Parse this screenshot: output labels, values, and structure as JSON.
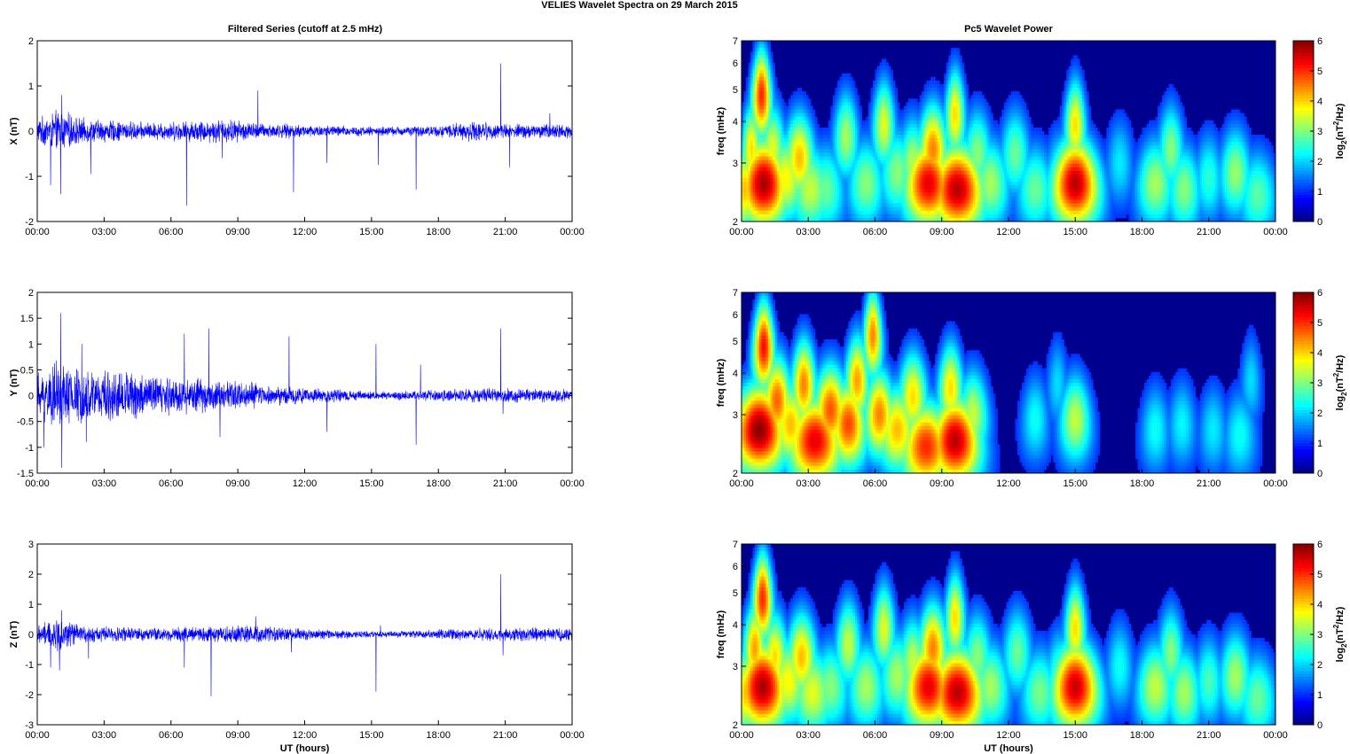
{
  "figure": {
    "suptitle": "VELIES Wavelet Spectra on 29 March      2015",
    "left_title": "Filtered Series (cutoff at 2.5 mHz)",
    "right_title": "Pc5 Wavelet Power",
    "xlabel": "UT (hours)",
    "spec_ylabel": "freq (mHz)",
    "cbar_label_main": "log",
    "cbar_label_sub": "2",
    "cbar_label_paren_open": "(nT",
    "cbar_label_sup": "2",
    "cbar_label_tail": "/Hz)"
  },
  "colors": {
    "trace": "#0000ff",
    "spectrum_background": "#00008f",
    "colormap": "jet"
  },
  "chart_data": [
    {
      "type": "line",
      "title": "Filtered Series (cutoff at 2.5 mHz)",
      "ylabel": "X (nT)",
      "xlabel": "",
      "xlim_hours": [
        0,
        24
      ],
      "xticks": [
        "00:00",
        "03:00",
        "06:00",
        "09:00",
        "12:00",
        "15:00",
        "18:00",
        "21:00",
        "00:00"
      ],
      "ylim": [
        -2,
        2
      ],
      "yticks": [
        "-2",
        "-1",
        "0",
        "1",
        "2"
      ],
      "yticks_vals": [
        -2,
        -1,
        0,
        1,
        2
      ],
      "noise_envelope": [
        {
          "t": 0.0,
          "a": 0.22
        },
        {
          "t": 1.0,
          "a": 0.38
        },
        {
          "t": 2.0,
          "a": 0.22
        },
        {
          "t": 3.0,
          "a": 0.2
        },
        {
          "t": 5.0,
          "a": 0.15
        },
        {
          "t": 8.5,
          "a": 0.22
        },
        {
          "t": 10.0,
          "a": 0.14
        },
        {
          "t": 15.3,
          "a": 0.08
        },
        {
          "t": 18.0,
          "a": 0.1
        },
        {
          "t": 19.5,
          "a": 0.18
        },
        {
          "t": 21.0,
          "a": 0.13
        },
        {
          "t": 24.0,
          "a": 0.13
        }
      ],
      "spikes": [
        {
          "t": 0.6,
          "v": -1.2
        },
        {
          "t": 1.05,
          "v": -1.4
        },
        {
          "t": 1.1,
          "v": 0.8
        },
        {
          "t": 2.4,
          "v": -0.95
        },
        {
          "t": 6.7,
          "v": -1.65
        },
        {
          "t": 8.3,
          "v": -0.6
        },
        {
          "t": 9.9,
          "v": 0.9
        },
        {
          "t": 11.5,
          "v": -1.35
        },
        {
          "t": 13.0,
          "v": -0.7
        },
        {
          "t": 15.3,
          "v": -0.75
        },
        {
          "t": 17.0,
          "v": -1.3
        },
        {
          "t": 20.8,
          "v": 1.5
        },
        {
          "t": 21.2,
          "v": -0.8
        },
        {
          "t": 23.0,
          "v": 0.4
        }
      ]
    },
    {
      "type": "line",
      "title": "",
      "ylabel": "Y (nT)",
      "xlabel": "",
      "xlim_hours": [
        0,
        24
      ],
      "xticks": [
        "00:00",
        "03:00",
        "06:00",
        "09:00",
        "12:00",
        "15:00",
        "18:00",
        "21:00",
        "00:00"
      ],
      "ylim": [
        -1.5,
        2
      ],
      "yticks": [
        "-1.5",
        "-1",
        "-0.5",
        "0",
        "0.5",
        "1",
        "1.5",
        "2"
      ],
      "yticks_vals": [
        -1.5,
        -1,
        -0.5,
        0,
        0.5,
        1,
        1.5,
        2
      ],
      "noise_envelope": [
        {
          "t": 0.0,
          "a": 0.35
        },
        {
          "t": 1.0,
          "a": 0.55
        },
        {
          "t": 2.0,
          "a": 0.4
        },
        {
          "t": 4.0,
          "a": 0.38
        },
        {
          "t": 6.0,
          "a": 0.3
        },
        {
          "t": 9.0,
          "a": 0.22
        },
        {
          "t": 12.0,
          "a": 0.12
        },
        {
          "t": 15.3,
          "a": 0.06
        },
        {
          "t": 18.0,
          "a": 0.09
        },
        {
          "t": 20.8,
          "a": 0.12
        },
        {
          "t": 24.0,
          "a": 0.09
        }
      ],
      "spikes": [
        {
          "t": 0.3,
          "v": -1.0
        },
        {
          "t": 1.05,
          "v": 1.6
        },
        {
          "t": 1.1,
          "v": -1.4
        },
        {
          "t": 2.0,
          "v": 1.0
        },
        {
          "t": 2.2,
          "v": -0.9
        },
        {
          "t": 6.6,
          "v": 1.2
        },
        {
          "t": 7.7,
          "v": 1.3
        },
        {
          "t": 8.2,
          "v": -0.8
        },
        {
          "t": 11.3,
          "v": 1.15
        },
        {
          "t": 13.0,
          "v": -0.7
        },
        {
          "t": 15.2,
          "v": 1.0
        },
        {
          "t": 17.0,
          "v": -0.95
        },
        {
          "t": 17.2,
          "v": 0.6
        },
        {
          "t": 20.8,
          "v": 1.3
        },
        {
          "t": 20.9,
          "v": -0.35
        }
      ]
    },
    {
      "type": "line",
      "title": "",
      "ylabel": "Z (nT)",
      "xlabel": "UT (hours)",
      "xlim_hours": [
        0,
        24
      ],
      "xticks": [
        "00:00",
        "03:00",
        "06:00",
        "09:00",
        "12:00",
        "15:00",
        "18:00",
        "21:00",
        "00:00"
      ],
      "ylim": [
        -3,
        3
      ],
      "yticks": [
        "-3",
        "-2",
        "-1",
        "0",
        "1",
        "2",
        "3"
      ],
      "yticks_vals": [
        -3,
        -2,
        -1,
        0,
        1,
        2,
        3
      ],
      "noise_envelope": [
        {
          "t": 0.0,
          "a": 0.25
        },
        {
          "t": 1.0,
          "a": 0.45
        },
        {
          "t": 2.0,
          "a": 0.22
        },
        {
          "t": 5.0,
          "a": 0.18
        },
        {
          "t": 8.8,
          "a": 0.25
        },
        {
          "t": 12.0,
          "a": 0.15
        },
        {
          "t": 15.3,
          "a": 0.08
        },
        {
          "t": 18.0,
          "a": 0.13
        },
        {
          "t": 20.8,
          "a": 0.18
        },
        {
          "t": 24.0,
          "a": 0.18
        }
      ],
      "spikes": [
        {
          "t": 0.6,
          "v": -1.1
        },
        {
          "t": 1.0,
          "v": -1.2
        },
        {
          "t": 1.1,
          "v": 0.8
        },
        {
          "t": 2.3,
          "v": -0.8
        },
        {
          "t": 6.6,
          "v": -1.1
        },
        {
          "t": 7.8,
          "v": -2.05
        },
        {
          "t": 9.8,
          "v": 0.6
        },
        {
          "t": 11.4,
          "v": -0.6
        },
        {
          "t": 15.2,
          "v": -1.9
        },
        {
          "t": 15.4,
          "v": 0.3
        },
        {
          "t": 20.8,
          "v": 2.0
        },
        {
          "t": 20.9,
          "v": -0.7
        }
      ]
    },
    {
      "type": "heatmap",
      "title": "Pc5 Wavelet Power",
      "ylabel": "freq (mHz)",
      "xlabel": "",
      "xlim_hours": [
        0,
        24
      ],
      "xticks": [
        "00:00",
        "03:00",
        "06:00",
        "09:00",
        "12:00",
        "15:00",
        "18:00",
        "21:00",
        "00:00"
      ],
      "ylim_mhz": [
        2,
        7
      ],
      "yscale": "log",
      "yticks": [
        "2",
        "3",
        "4",
        "5",
        "6",
        "7"
      ],
      "yticks_vals": [
        2,
        3,
        4,
        5,
        6,
        7
      ],
      "colorbar_range": [
        0,
        6
      ],
      "colorbar_ticks": [
        "0",
        "1",
        "2",
        "3",
        "4",
        "5",
        "6"
      ],
      "blobs": [
        {
          "t": 0.15,
          "f": 2.5,
          "p": 3.8,
          "w": 0.12
        },
        {
          "t": 0.45,
          "f": 3.3,
          "p": 3.6,
          "w": 0.12
        },
        {
          "t": 0.7,
          "f": 2.6,
          "p": 4.2,
          "w": 0.14
        },
        {
          "t": 1.0,
          "f": 2.6,
          "p": 5.6,
          "w": 0.25
        },
        {
          "t": 0.9,
          "f": 4.8,
          "p": 4.8,
          "w": 0.15
        },
        {
          "t": 1.4,
          "f": 3.3,
          "p": 3.2,
          "w": 0.16
        },
        {
          "t": 2.0,
          "f": 2.7,
          "p": 3.4,
          "w": 0.2
        },
        {
          "t": 2.6,
          "f": 3.1,
          "p": 3.8,
          "w": 0.18
        },
        {
          "t": 3.1,
          "f": 2.5,
          "p": 3.0,
          "w": 0.22
        },
        {
          "t": 3.8,
          "f": 2.5,
          "p": 2.4,
          "w": 0.2
        },
        {
          "t": 4.7,
          "f": 3.6,
          "p": 2.8,
          "w": 0.16
        },
        {
          "t": 5.6,
          "f": 2.6,
          "p": 2.6,
          "w": 0.2
        },
        {
          "t": 6.4,
          "f": 3.9,
          "p": 3.2,
          "w": 0.15
        },
        {
          "t": 7.0,
          "f": 2.8,
          "p": 2.6,
          "w": 0.2
        },
        {
          "t": 7.7,
          "f": 3.0,
          "p": 2.9,
          "w": 0.17
        },
        {
          "t": 8.4,
          "f": 2.6,
          "p": 5.2,
          "w": 0.26
        },
        {
          "t": 8.6,
          "f": 3.3,
          "p": 4.2,
          "w": 0.18
        },
        {
          "t": 9.7,
          "f": 2.5,
          "p": 5.5,
          "w": 0.28
        },
        {
          "t": 9.6,
          "f": 4.2,
          "p": 3.6,
          "w": 0.14
        },
        {
          "t": 10.6,
          "f": 3.2,
          "p": 2.6,
          "w": 0.18
        },
        {
          "t": 11.2,
          "f": 2.6,
          "p": 2.8,
          "w": 0.2
        },
        {
          "t": 12.3,
          "f": 3.2,
          "p": 2.4,
          "w": 0.18
        },
        {
          "t": 13.2,
          "f": 2.5,
          "p": 2.4,
          "w": 0.2
        },
        {
          "t": 14.3,
          "f": 2.7,
          "p": 2.2,
          "w": 0.16
        },
        {
          "t": 15.0,
          "f": 2.6,
          "p": 5.5,
          "w": 0.25
        },
        {
          "t": 15.0,
          "f": 3.9,
          "p": 3.6,
          "w": 0.14
        },
        {
          "t": 17.0,
          "f": 3.0,
          "p": 1.6,
          "w": 0.16
        },
        {
          "t": 18.6,
          "f": 2.6,
          "p": 2.8,
          "w": 0.2
        },
        {
          "t": 19.3,
          "f": 3.3,
          "p": 2.6,
          "w": 0.16
        },
        {
          "t": 19.9,
          "f": 2.5,
          "p": 2.6,
          "w": 0.18
        },
        {
          "t": 21.0,
          "f": 2.7,
          "p": 2.0,
          "w": 0.16
        },
        {
          "t": 22.2,
          "f": 2.8,
          "p": 2.7,
          "w": 0.18
        },
        {
          "t": 23.2,
          "f": 2.4,
          "p": 2.3,
          "w": 0.2
        }
      ]
    },
    {
      "type": "heatmap",
      "title": "",
      "ylabel": "freq (mHz)",
      "xlabel": "",
      "xlim_hours": [
        0,
        24
      ],
      "xticks": [
        "00:00",
        "03:00",
        "06:00",
        "09:00",
        "12:00",
        "15:00",
        "18:00",
        "21:00",
        "00:00"
      ],
      "ylim_mhz": [
        2,
        7
      ],
      "yscale": "log",
      "yticks": [
        "2",
        "3",
        "4",
        "5",
        "6",
        "7"
      ],
      "yticks_vals": [
        2,
        3,
        4,
        5,
        6,
        7
      ],
      "colorbar_range": [
        0,
        6
      ],
      "colorbar_ticks": [
        "0",
        "1",
        "2",
        "3",
        "4",
        "5",
        "6"
      ],
      "blobs": [
        {
          "t": 0.3,
          "f": 2.6,
          "p": 4.2,
          "w": 0.14
        },
        {
          "t": 0.8,
          "f": 2.7,
          "p": 5.8,
          "w": 0.28
        },
        {
          "t": 1.0,
          "f": 4.8,
          "p": 5.0,
          "w": 0.16
        },
        {
          "t": 1.6,
          "f": 3.3,
          "p": 4.4,
          "w": 0.18
        },
        {
          "t": 2.2,
          "f": 2.8,
          "p": 3.8,
          "w": 0.2
        },
        {
          "t": 2.8,
          "f": 3.7,
          "p": 4.2,
          "w": 0.16
        },
        {
          "t": 3.3,
          "f": 2.5,
          "p": 5.2,
          "w": 0.28
        },
        {
          "t": 4.0,
          "f": 3.1,
          "p": 4.5,
          "w": 0.2
        },
        {
          "t": 4.8,
          "f": 2.8,
          "p": 4.6,
          "w": 0.2
        },
        {
          "t": 5.2,
          "f": 3.8,
          "p": 4.0,
          "w": 0.16
        },
        {
          "t": 5.9,
          "f": 5.2,
          "p": 4.2,
          "w": 0.15
        },
        {
          "t": 6.2,
          "f": 3.0,
          "p": 4.2,
          "w": 0.18
        },
        {
          "t": 7.0,
          "f": 2.7,
          "p": 3.8,
          "w": 0.22
        },
        {
          "t": 7.7,
          "f": 3.4,
          "p": 3.6,
          "w": 0.18
        },
        {
          "t": 8.3,
          "f": 2.4,
          "p": 4.8,
          "w": 0.26
        },
        {
          "t": 9.6,
          "f": 2.5,
          "p": 5.5,
          "w": 0.26
        },
        {
          "t": 9.4,
          "f": 3.6,
          "p": 3.6,
          "w": 0.16
        },
        {
          "t": 10.4,
          "f": 3.0,
          "p": 3.0,
          "w": 0.18
        },
        {
          "t": 13.2,
          "f": 2.9,
          "p": 1.8,
          "w": 0.16
        },
        {
          "t": 14.2,
          "f": 3.7,
          "p": 1.5,
          "w": 0.14
        },
        {
          "t": 15.0,
          "f": 2.9,
          "p": 3.0,
          "w": 0.18
        },
        {
          "t": 18.6,
          "f": 2.7,
          "p": 1.8,
          "w": 0.16
        },
        {
          "t": 19.8,
          "f": 2.8,
          "p": 1.7,
          "w": 0.16
        },
        {
          "t": 21.2,
          "f": 2.7,
          "p": 1.6,
          "w": 0.16
        },
        {
          "t": 22.4,
          "f": 2.6,
          "p": 1.8,
          "w": 0.18
        },
        {
          "t": 22.9,
          "f": 3.8,
          "p": 1.5,
          "w": 0.14
        }
      ]
    },
    {
      "type": "heatmap",
      "title": "",
      "ylabel": "freq (mHz)",
      "xlabel": "UT (hours)",
      "xlim_hours": [
        0,
        24
      ],
      "xticks": [
        "00:00",
        "03:00",
        "06:00",
        "09:00",
        "12:00",
        "15:00",
        "18:00",
        "21:00",
        "00:00"
      ],
      "ylim_mhz": [
        2,
        7
      ],
      "yscale": "log",
      "yticks": [
        "2",
        "3",
        "4",
        "5",
        "6",
        "7"
      ],
      "yticks_vals": [
        2,
        3,
        4,
        5,
        6,
        7
      ],
      "colorbar_range": [
        0,
        6
      ],
      "colorbar_ticks": [
        "0",
        "1",
        "2",
        "3",
        "4",
        "5",
        "6"
      ],
      "blobs": [
        {
          "t": 0.2,
          "f": 2.5,
          "p": 3.8,
          "w": 0.12
        },
        {
          "t": 0.6,
          "f": 3.4,
          "p": 4.0,
          "w": 0.14
        },
        {
          "t": 0.95,
          "f": 2.6,
          "p": 5.6,
          "w": 0.26
        },
        {
          "t": 0.95,
          "f": 4.8,
          "p": 4.8,
          "w": 0.15
        },
        {
          "t": 1.5,
          "f": 3.2,
          "p": 3.6,
          "w": 0.16
        },
        {
          "t": 2.1,
          "f": 2.7,
          "p": 3.4,
          "w": 0.2
        },
        {
          "t": 2.7,
          "f": 3.2,
          "p": 3.8,
          "w": 0.18
        },
        {
          "t": 3.2,
          "f": 2.5,
          "p": 3.2,
          "w": 0.22
        },
        {
          "t": 4.0,
          "f": 2.6,
          "p": 2.6,
          "w": 0.2
        },
        {
          "t": 4.8,
          "f": 3.5,
          "p": 3.0,
          "w": 0.16
        },
        {
          "t": 5.6,
          "f": 2.6,
          "p": 2.8,
          "w": 0.2
        },
        {
          "t": 6.4,
          "f": 3.9,
          "p": 3.2,
          "w": 0.15
        },
        {
          "t": 7.0,
          "f": 2.8,
          "p": 2.8,
          "w": 0.2
        },
        {
          "t": 7.7,
          "f": 3.1,
          "p": 3.0,
          "w": 0.17
        },
        {
          "t": 8.4,
          "f": 2.6,
          "p": 5.2,
          "w": 0.26
        },
        {
          "t": 8.6,
          "f": 3.4,
          "p": 4.2,
          "w": 0.18
        },
        {
          "t": 9.7,
          "f": 2.5,
          "p": 5.5,
          "w": 0.28
        },
        {
          "t": 9.6,
          "f": 4.2,
          "p": 3.6,
          "w": 0.14
        },
        {
          "t": 10.6,
          "f": 3.2,
          "p": 2.6,
          "w": 0.18
        },
        {
          "t": 11.2,
          "f": 2.6,
          "p": 2.8,
          "w": 0.2
        },
        {
          "t": 12.4,
          "f": 3.3,
          "p": 2.4,
          "w": 0.18
        },
        {
          "t": 13.4,
          "f": 2.5,
          "p": 2.5,
          "w": 0.2
        },
        {
          "t": 14.3,
          "f": 2.8,
          "p": 2.3,
          "w": 0.16
        },
        {
          "t": 15.0,
          "f": 2.6,
          "p": 5.4,
          "w": 0.25
        },
        {
          "t": 15.0,
          "f": 3.9,
          "p": 3.6,
          "w": 0.14
        },
        {
          "t": 17.0,
          "f": 3.0,
          "p": 1.8,
          "w": 0.16
        },
        {
          "t": 18.6,
          "f": 2.6,
          "p": 3.0,
          "w": 0.2
        },
        {
          "t": 19.3,
          "f": 3.3,
          "p": 2.6,
          "w": 0.16
        },
        {
          "t": 19.9,
          "f": 2.5,
          "p": 2.8,
          "w": 0.18
        },
        {
          "t": 21.0,
          "f": 2.7,
          "p": 2.2,
          "w": 0.16
        },
        {
          "t": 22.2,
          "f": 2.8,
          "p": 2.8,
          "w": 0.18
        },
        {
          "t": 23.2,
          "f": 2.4,
          "p": 2.4,
          "w": 0.2
        }
      ]
    }
  ]
}
